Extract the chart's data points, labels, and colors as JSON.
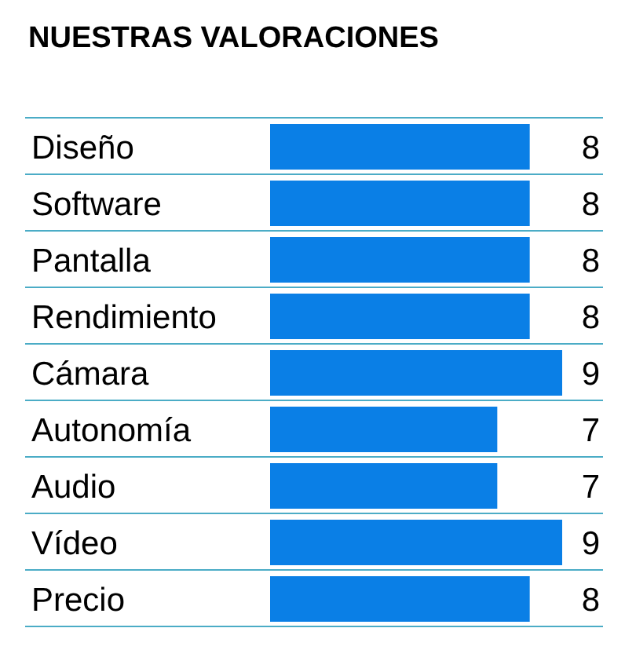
{
  "chart_data": {
    "type": "bar",
    "orientation": "horizontal",
    "title": "NUESTRAS VALORACIONES",
    "categories": [
      "Diseño",
      "Software",
      "Pantalla",
      "Rendimiento",
      "Cámara",
      "Autonomía",
      "Audio",
      "Vídeo",
      "Precio"
    ],
    "values": [
      8,
      8,
      8,
      8,
      9,
      7,
      7,
      9,
      8
    ],
    "color": "#0a7fe6",
    "data_labels": true
  }
}
